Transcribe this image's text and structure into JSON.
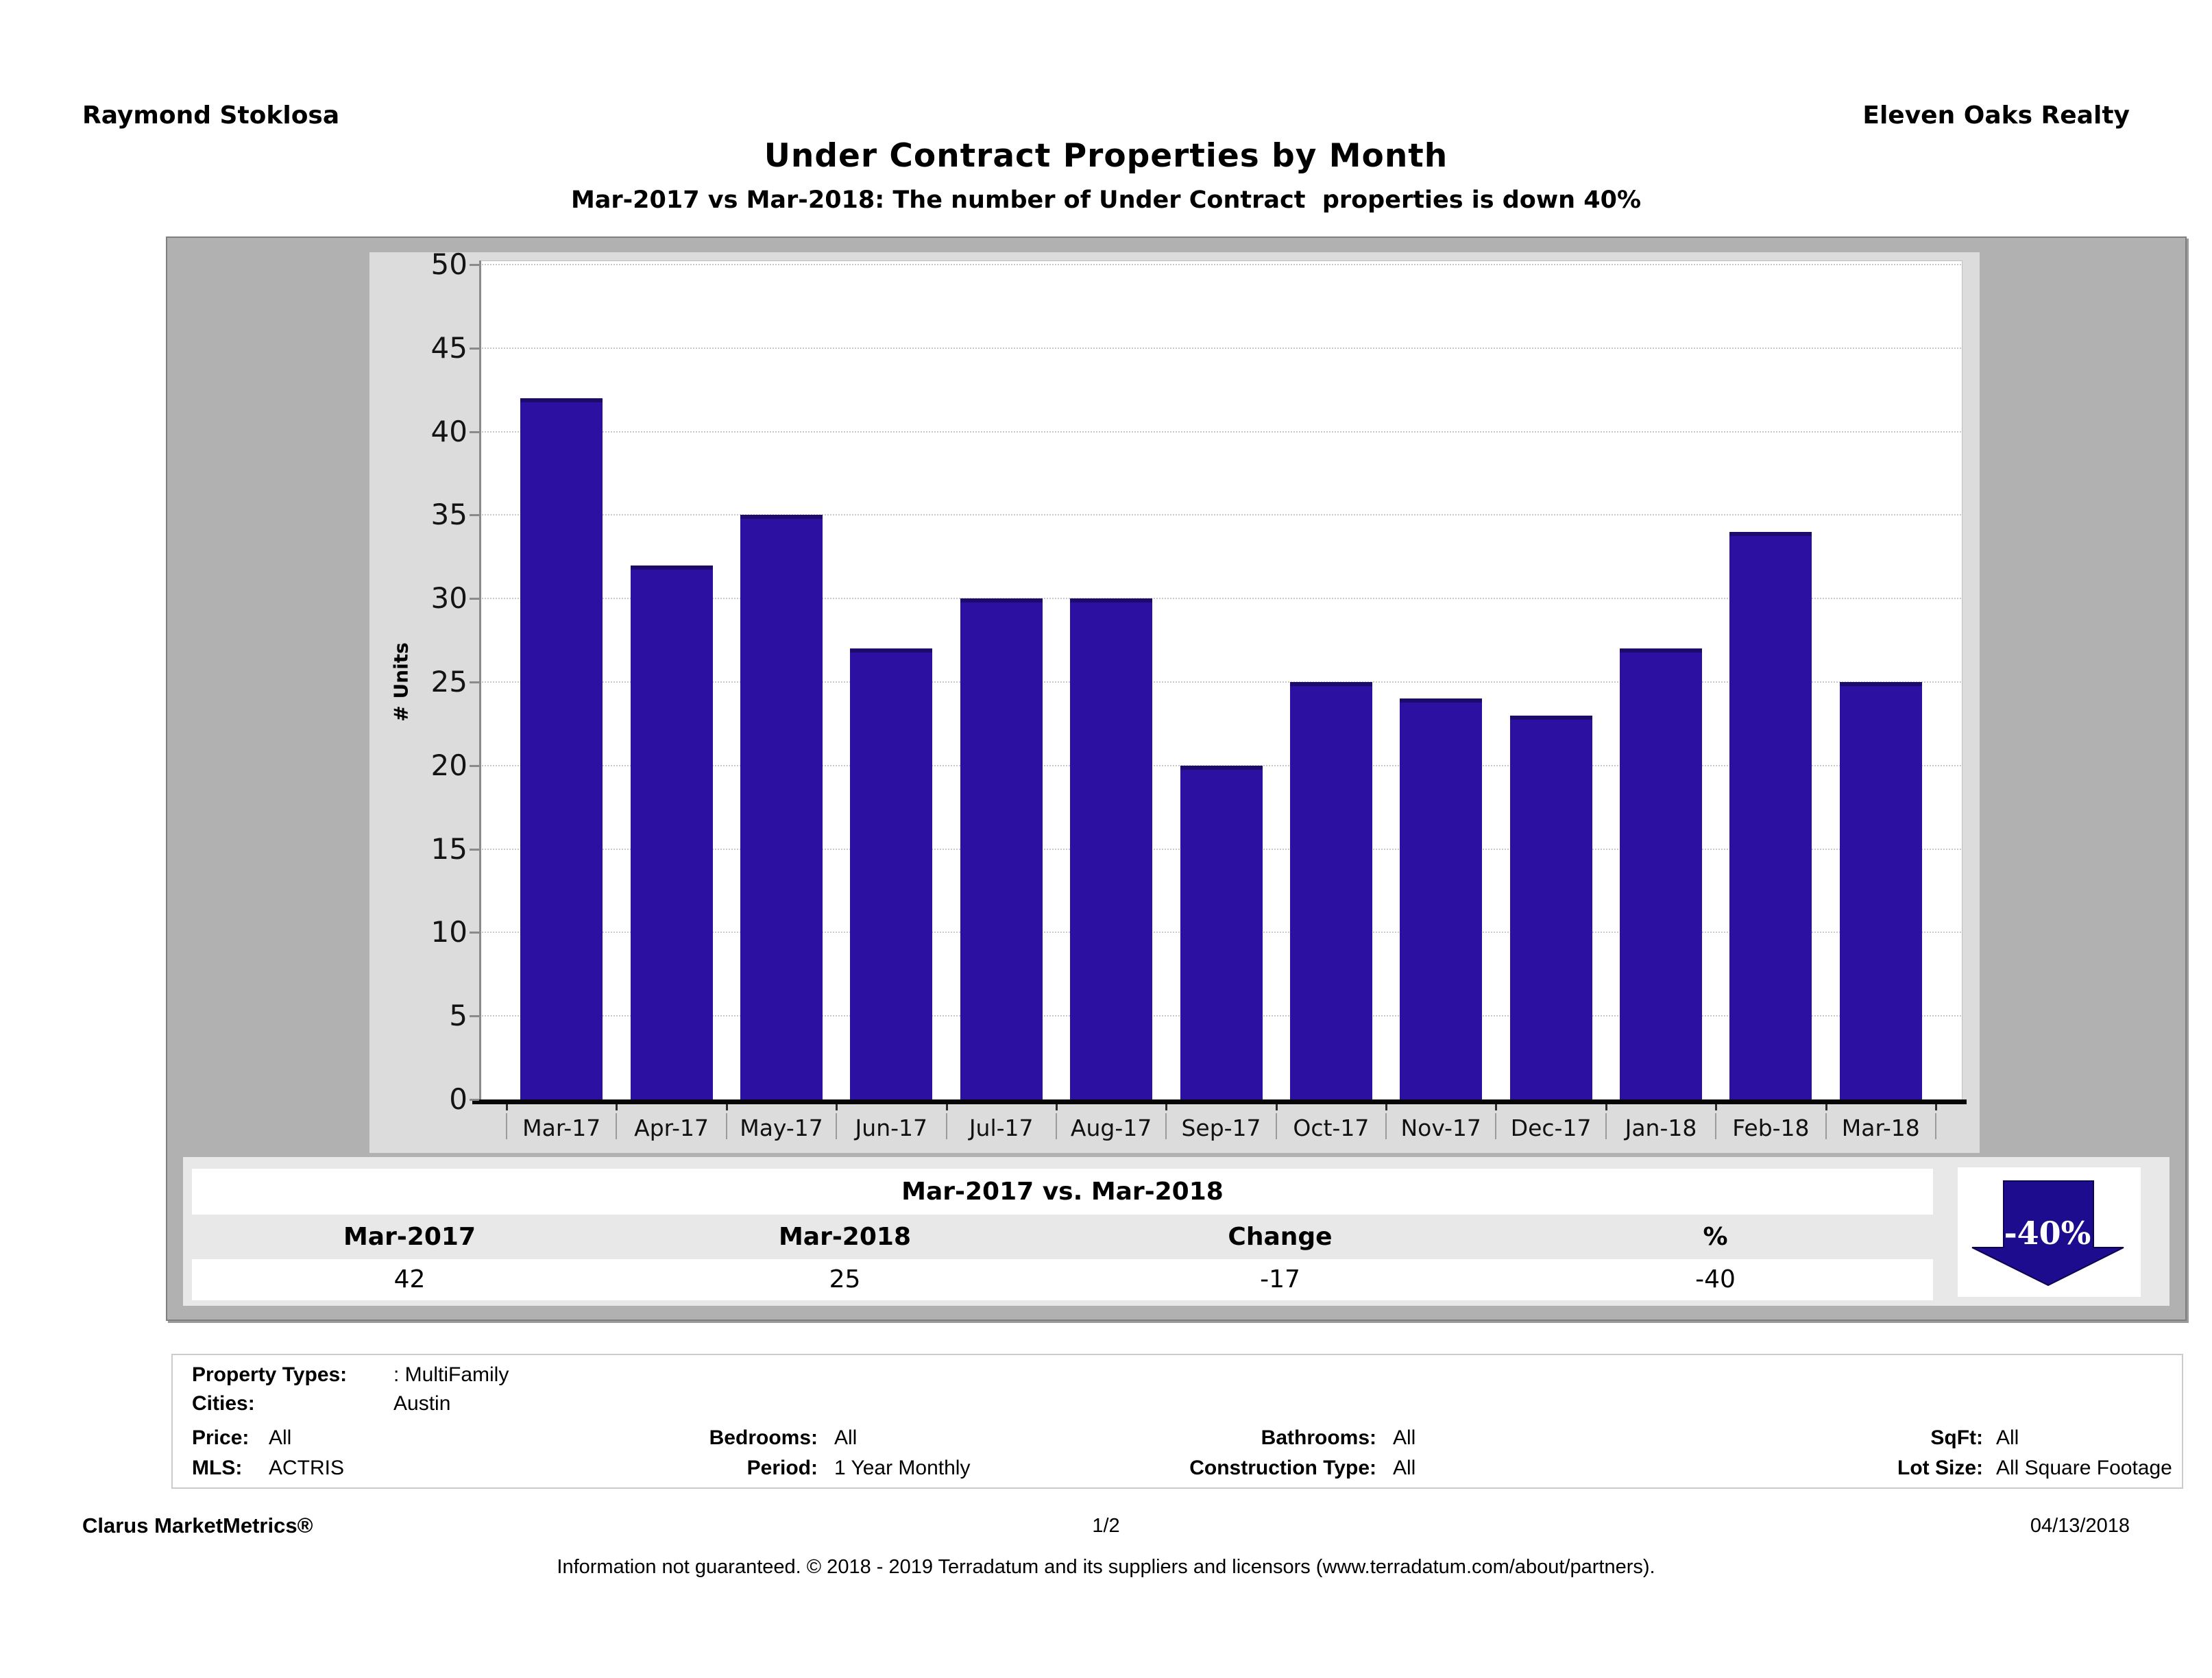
{
  "header": {
    "agent": "Raymond Stoklosa",
    "company": "Eleven Oaks Realty",
    "title": "Under Contract Properties by Month",
    "subtitle": "Mar-2017 vs Mar-2018: The number of Under Contract  properties is down 40%"
  },
  "chart_data": {
    "type": "bar",
    "title": "Under Contract Properties by Month",
    "categories": [
      "Mar-17",
      "Apr-17",
      "May-17",
      "Jun-17",
      "Jul-17",
      "Aug-17",
      "Sep-17",
      "Oct-17",
      "Nov-17",
      "Dec-17",
      "Jan-18",
      "Feb-18",
      "Mar-18"
    ],
    "values": [
      42,
      32,
      35,
      27,
      30,
      30,
      20,
      25,
      24,
      23,
      27,
      34,
      25
    ],
    "xlabel": "",
    "ylabel": "# Units",
    "ylim": [
      0,
      50
    ],
    "ytick_step": 5,
    "grid": "horizontal-dotted",
    "legend": "none",
    "colors": {
      "bar": "#2b10a2",
      "bar_top_bevel": "#1d0a6d",
      "gridline": "#c9c9c9",
      "plot_bg": "#ffffff",
      "chart_bg": "#dcdcdc",
      "panel_bg": "#b2b1b2"
    }
  },
  "summary_table": {
    "title": "Mar-2017 vs. Mar-2018",
    "columns": [
      "Mar-2017",
      "Mar-2018",
      "Change",
      "%"
    ],
    "values": [
      "42",
      "25",
      "-17",
      "-40"
    ],
    "arrow": {
      "label": "-40%",
      "direction": "down",
      "color": "#1e0c8f"
    }
  },
  "criteria": {
    "property_types_label": "Property Types:",
    "property_types_value": ": MultiFamily",
    "cities_label": "Cities:",
    "cities_value": "Austin",
    "price_label": "Price:",
    "price_value": "All",
    "bedrooms_label": "Bedrooms:",
    "bedrooms_value": "All",
    "bathrooms_label": "Bathrooms:",
    "bathrooms_value": "All",
    "sqft_label": "SqFt:",
    "sqft_value": "All",
    "mls_label": "MLS:",
    "mls_value": "ACTRIS",
    "period_label": "Period:",
    "period_value": "1 Year Monthly",
    "construction_label": "Construction Type:",
    "construction_value": "All",
    "lot_size_label": "Lot Size:",
    "lot_size_value": "All Square Footage"
  },
  "footer": {
    "brand": "Clarus MarketMetrics®",
    "page": "1/2",
    "date": "04/13/2018",
    "disclaimer": "Information not guaranteed. © 2018 - 2019 Terradatum and its suppliers and licensors (www.terradatum.com/about/partners)."
  }
}
